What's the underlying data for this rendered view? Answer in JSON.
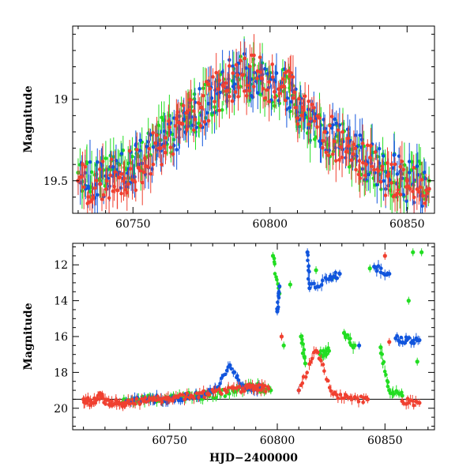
{
  "chart_data": [
    {
      "type": "scatter",
      "panel": "top",
      "xlabel": "",
      "ylabel": "Magnitude",
      "xlim": [
        60728,
        60860
      ],
      "ylim": [
        19.7,
        18.55
      ],
      "y_inverted": true,
      "xticks": [
        60750,
        60800,
        60850
      ],
      "yticks": [
        19,
        19.5
      ],
      "xtick_labels": [
        "60750",
        "60800",
        "60850"
      ],
      "ytick_labels": [
        "19",
        "19.5"
      ],
      "grid": false,
      "legend": "none",
      "series": [
        {
          "color": "#22dd22",
          "marker": "circle",
          "error_bars": true,
          "x": [
            60730,
            60738,
            60745,
            60752,
            60760,
            60768,
            60775,
            60783,
            60790,
            60797,
            60805,
            60812,
            60820,
            60828,
            60835,
            60843,
            60850,
            60858
          ],
          "y": [
            19.45,
            19.5,
            19.4,
            19.35,
            19.25,
            19.15,
            19.05,
            18.95,
            18.85,
            18.9,
            18.95,
            19.1,
            19.2,
            19.3,
            19.4,
            19.45,
            19.5,
            19.5
          ]
        },
        {
          "color": "#1155dd",
          "marker": "circle",
          "error_bars": true,
          "x": [
            60730,
            60738,
            60745,
            60752,
            60760,
            60768,
            60775,
            60783,
            60790,
            60797,
            60805,
            60812,
            60820,
            60828,
            60835,
            60843,
            60850,
            60858
          ],
          "y": [
            19.5,
            19.52,
            19.45,
            19.4,
            19.28,
            19.15,
            19.05,
            18.9,
            18.85,
            18.88,
            18.92,
            19.05,
            19.18,
            19.3,
            19.38,
            19.45,
            19.5,
            19.55
          ]
        },
        {
          "color": "#f04030",
          "marker": "circle",
          "error_bars": true,
          "x": [
            60730,
            60738,
            60745,
            60752,
            60760,
            60768,
            60775,
            60783,
            60790,
            60797,
            60805,
            60812,
            60820,
            60828,
            60835,
            60843,
            60850,
            60858
          ],
          "y": [
            19.5,
            19.52,
            19.48,
            19.42,
            19.3,
            19.15,
            19.05,
            18.92,
            18.85,
            18.87,
            18.92,
            19.05,
            19.2,
            19.32,
            19.4,
            19.47,
            19.5,
            19.55
          ]
        }
      ]
    },
    {
      "type": "scatter",
      "panel": "bottom",
      "xlabel": "HJD−2400000",
      "ylabel": "Magnitude",
      "xlim": [
        60705,
        60873
      ],
      "ylim": [
        21.2,
        10.8
      ],
      "y_inverted": true,
      "xticks": [
        60750,
        60800,
        60850
      ],
      "yticks": [
        12,
        14,
        16,
        18,
        20
      ],
      "xtick_labels": [
        "60750",
        "60800",
        "60850"
      ],
      "ytick_labels": [
        "12",
        "14",
        "16",
        "18",
        "20"
      ],
      "grid": false,
      "legend": "none",
      "reference_line_y": 19.5,
      "series": [
        {
          "color": "#22dd22",
          "marker": "circle",
          "error_bars": true,
          "x": [
            60728,
            60735,
            60742,
            60750,
            60758,
            60766,
            60774,
            60782,
            60790,
            60797,
            60798,
            60801,
            60803,
            60806,
            60811,
            60813,
            60818,
            60820,
            60824,
            60826,
            60831,
            60836,
            60843,
            60848,
            60852,
            60858,
            60861,
            60863,
            60865,
            60867
          ],
          "y": [
            19.7,
            19.6,
            19.4,
            19.5,
            19.3,
            19.3,
            19.2,
            18.9,
            18.8,
            19.0,
            11.5,
            13.6,
            16.5,
            13.1,
            16.0,
            17.5,
            12.3,
            17.0,
            16.8,
            12.7,
            15.8,
            16.5,
            12.2,
            16.6,
            19.0,
            19.3,
            14.0,
            11.3,
            17.4,
            11.3
          ]
        },
        {
          "color": "#1155dd",
          "marker": "circle",
          "error_bars": true,
          "x": [
            60730,
            60740,
            60750,
            60760,
            60770,
            60778,
            60785,
            60792,
            60800,
            60801,
            60810,
            60814,
            60815,
            60824,
            60829,
            60838,
            60845,
            60852,
            60855,
            60860,
            60866
          ],
          "y": [
            19.6,
            19.5,
            19.5,
            19.3,
            19.1,
            17.6,
            18.9,
            18.8,
            14.6,
            13.2,
            19.0,
            11.3,
            13.3,
            12.8,
            12.5,
            16.5,
            12.1,
            12.5,
            16.1,
            16.2,
            16.2
          ]
        },
        {
          "color": "#f04030",
          "marker": "circle",
          "error_bars": true,
          "x": [
            60710,
            60714,
            60718,
            60722,
            60726,
            60730,
            60738,
            60745,
            60752,
            60760,
            60768,
            60776,
            60784,
            60790,
            60796,
            60802,
            60810,
            60818,
            60826,
            60834,
            60842,
            60850,
            60852,
            60858,
            60866
          ],
          "y": [
            19.5,
            19.7,
            19.3,
            19.8,
            19.7,
            19.7,
            19.6,
            19.5,
            19.4,
            19.3,
            19.2,
            19.0,
            18.9,
            18.8,
            18.9,
            16.0,
            19.0,
            16.8,
            19.2,
            19.4,
            19.5,
            11.5,
            16.3,
            19.6,
            19.7
          ]
        }
      ]
    }
  ]
}
